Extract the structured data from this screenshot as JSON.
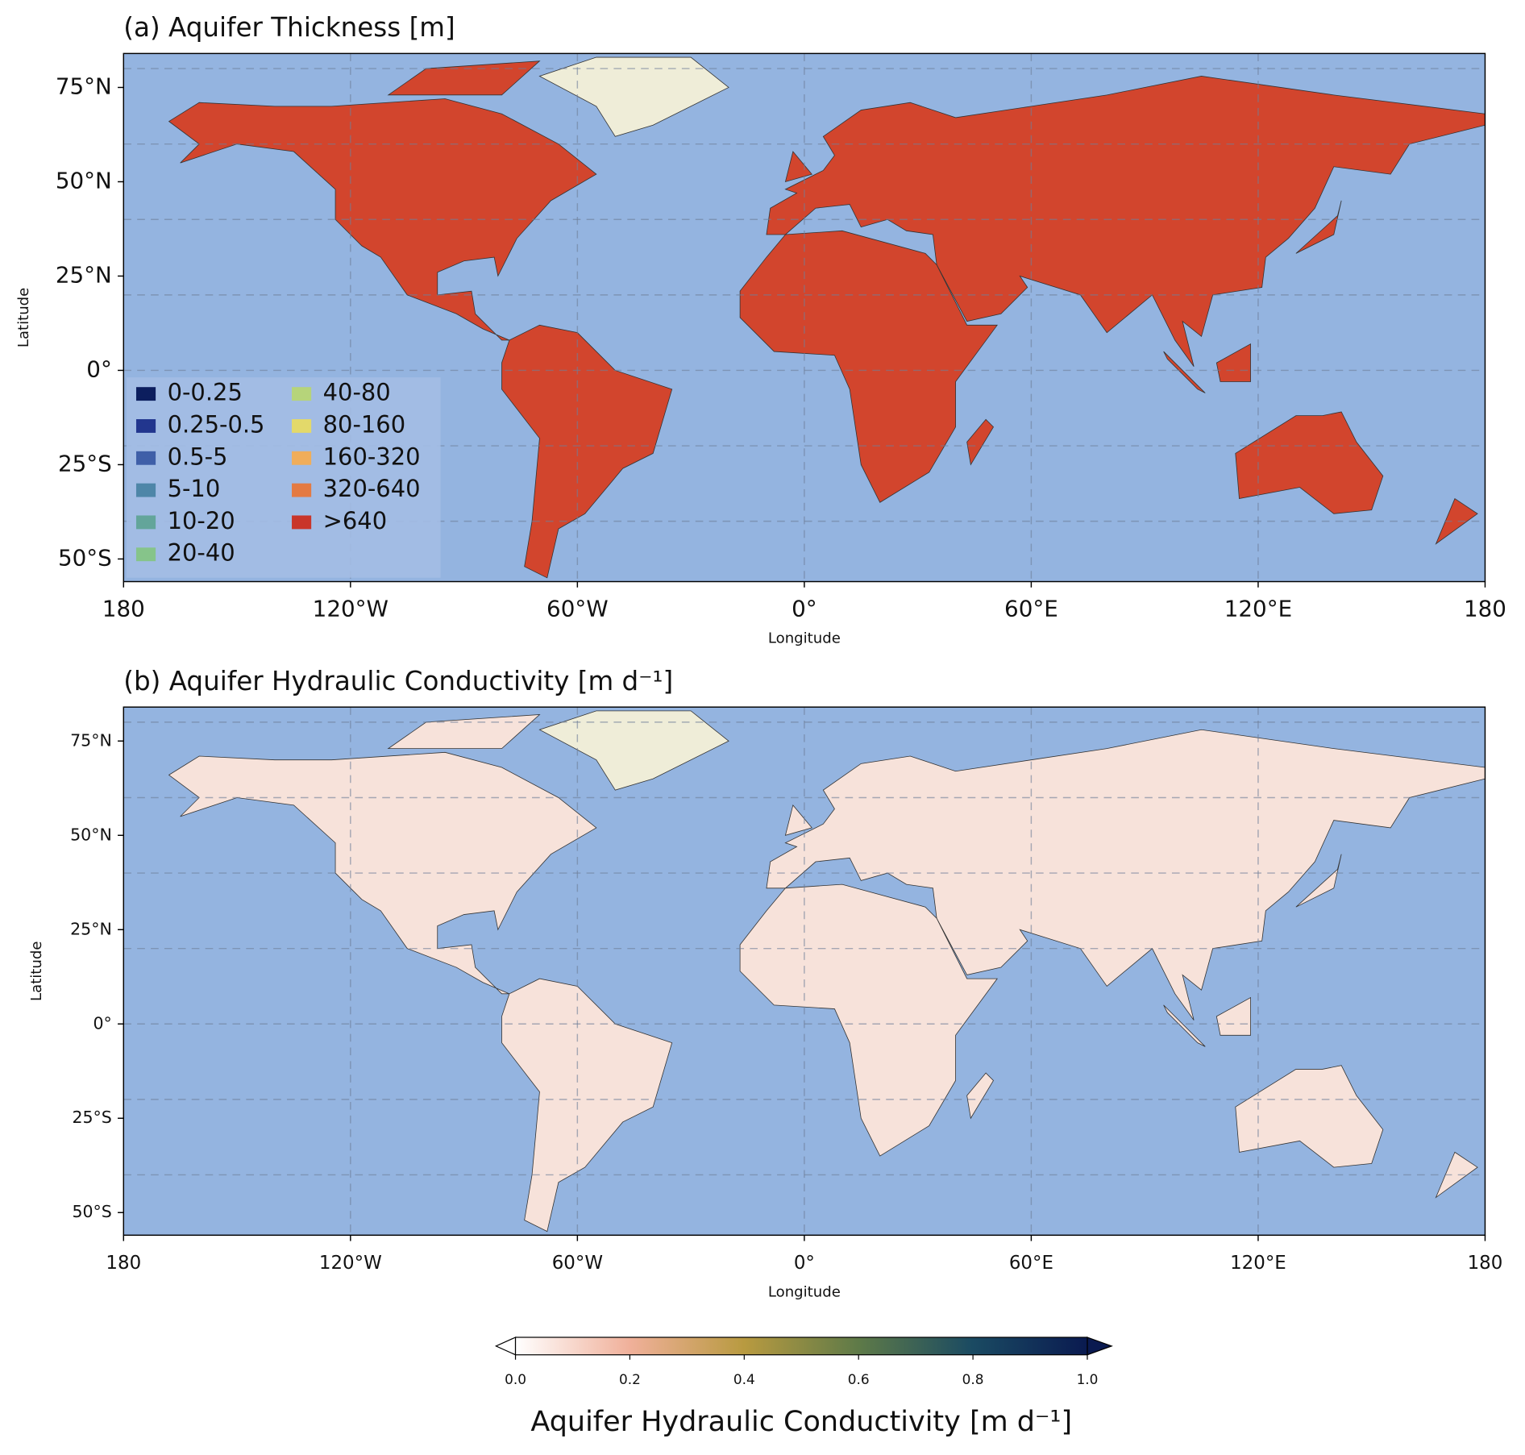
{
  "chart_data": [
    {
      "type": "map",
      "title": "(a) Aquifer Thickness [m]",
      "x_label": "Longitude",
      "y_label": "Latitude",
      "xlim": [
        -180,
        180
      ],
      "ylim": [
        -56,
        84
      ],
      "xticks": [
        {
          "value": -180,
          "label": "180"
        },
        {
          "value": -120,
          "label": "120°W"
        },
        {
          "value": -60,
          "label": "60°W"
        },
        {
          "value": 0,
          "label": "0°"
        },
        {
          "value": 60,
          "label": "60°E"
        },
        {
          "value": 120,
          "label": "120°E"
        },
        {
          "value": 180,
          "label": "180"
        }
      ],
      "yticks": [
        {
          "value": 75,
          "label": "75°N"
        },
        {
          "value": 50,
          "label": "50°N"
        },
        {
          "value": 25,
          "label": "25°N"
        },
        {
          "value": 0,
          "label": "0°"
        },
        {
          "value": -25,
          "label": "25°S"
        },
        {
          "value": -50,
          "label": "50°S"
        }
      ],
      "xgrid": [
        -120,
        -60,
        0,
        60,
        120
      ],
      "ygrid": [
        -40,
        -20,
        0,
        20,
        40,
        60,
        80
      ],
      "grid": true,
      "legend": {
        "position": "lower left",
        "items": [
          {
            "label": "0-0.25",
            "color": "#0c1e5e"
          },
          {
            "label": "0.25-0.5",
            "color": "#22368e"
          },
          {
            "label": "0.5-5",
            "color": "#3f5fa8"
          },
          {
            "label": "5-10",
            "color": "#4e86a8"
          },
          {
            "label": "10-20",
            "color": "#63a59a"
          },
          {
            "label": "20-40",
            "color": "#86c48a"
          },
          {
            "label": "40-80",
            "color": "#b6d47a"
          },
          {
            "label": "80-160",
            "color": "#e3d96a"
          },
          {
            "label": "160-320",
            "color": "#f0ad5a"
          },
          {
            "label": "320-640",
            "color": "#e47a42"
          },
          {
            "label": ">640",
            "color": "#c9352a"
          }
        ]
      }
    },
    {
      "type": "map",
      "title": "(b) Aquifer Hydraulic Conductivity [m d⁻¹]",
      "x_label": "Longitude",
      "y_label": "Latitude",
      "xlim": [
        -180,
        180
      ],
      "ylim": [
        -56,
        84
      ],
      "xticks": [
        {
          "value": -180,
          "label": "180"
        },
        {
          "value": -120,
          "label": "120°W"
        },
        {
          "value": -60,
          "label": "60°W"
        },
        {
          "value": 0,
          "label": "0°"
        },
        {
          "value": 60,
          "label": "60°E"
        },
        {
          "value": 120,
          "label": "120°E"
        },
        {
          "value": 180,
          "label": "180"
        }
      ],
      "yticks": [
        {
          "value": 75,
          "label": "75°N"
        },
        {
          "value": 50,
          "label": "50°N"
        },
        {
          "value": 25,
          "label": "25°N"
        },
        {
          "value": 0,
          "label": "0°"
        },
        {
          "value": -25,
          "label": "25°S"
        },
        {
          "value": -50,
          "label": "50°S"
        }
      ],
      "xgrid": [
        -120,
        -60,
        0,
        60,
        120
      ],
      "ygrid": [
        -40,
        -20,
        0,
        20,
        40,
        60,
        80
      ],
      "grid": true,
      "colorbar": {
        "label": "Aquifer Hydraulic Conductivity [m d⁻¹]",
        "lim": [
          0,
          1
        ],
        "ticks": [
          {
            "value": 0,
            "label": "0.0"
          },
          0.2,
          0.4,
          0.6,
          0.8,
          {
            "value": 1,
            "label": "1.0"
          }
        ],
        "colors": [
          "#ffffff",
          "#f0b09a",
          "#b89a40",
          "#5e7a48",
          "#1a4a62",
          "#0a1a50"
        ]
      }
    }
  ]
}
